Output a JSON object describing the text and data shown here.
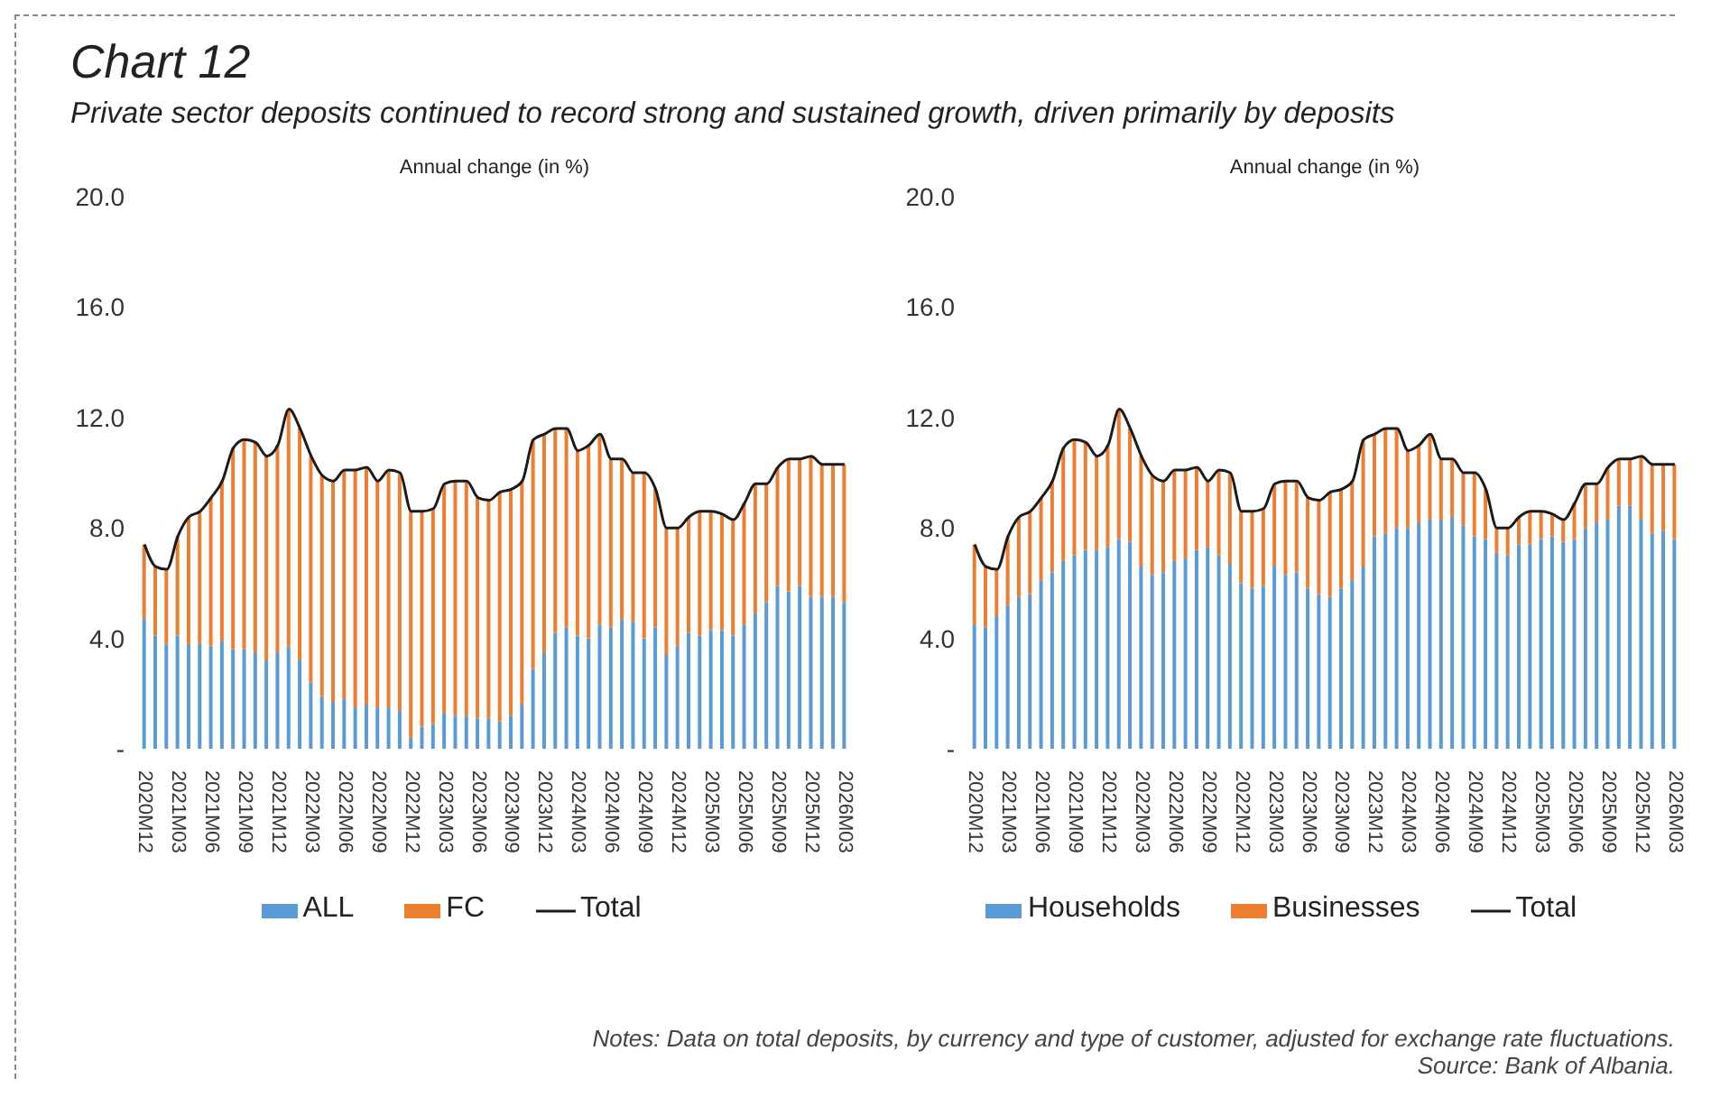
{
  "chart_data": [
    {
      "type": "bar",
      "title": "Chart 12",
      "subtitle": "Private sector deposits continued to record strong and sustained growth, driven primarily by deposits",
      "ylabel": "Annual change (in %)",
      "stacked": true,
      "legend": "bottom",
      "grid": false,
      "marker": "none",
      "categories": [
        "2020M12",
        null,
        null,
        "2021M03",
        null,
        null,
        "2021M06",
        null,
        null,
        "2021M09",
        null,
        null,
        "2021M12",
        null,
        null,
        "2022M03",
        null,
        null,
        "2022M06",
        null,
        null,
        "2022M09",
        null,
        null,
        "2022M12",
        null,
        null,
        "2023M03",
        null,
        null,
        "2023M06",
        null,
        null,
        "2023M09",
        null,
        null,
        "2023M12",
        null,
        null,
        "2024M03",
        null,
        null,
        "2024M06",
        null,
        null,
        "2024M09",
        null,
        null,
        "2024M12",
        null,
        null,
        "2025M03",
        null,
        null,
        "2025M06",
        null,
        null,
        "2025M09",
        null,
        null,
        "2025M12",
        null,
        null,
        "2026M03"
      ],
      "ylim": [
        0,
        20
      ],
      "yticks": [
        {
          "value": 0,
          "label": "-"
        },
        {
          "value": 4,
          "label": "4.0"
        },
        {
          "value": 8,
          "label": "8.0"
        },
        {
          "value": 12,
          "label": "12.0"
        },
        {
          "value": 16,
          "label": "16.0"
        },
        {
          "value": 20,
          "label": "20.0"
        }
      ],
      "series": [
        {
          "name": "ALL",
          "color": "#5b9bd5",
          "values": [
            4.7,
            4.1,
            3.8,
            4.1,
            3.8,
            3.8,
            3.7,
            3.9,
            3.6,
            3.6,
            3.5,
            3.2,
            3.5,
            3.7,
            3.2,
            2.4,
            1.9,
            1.7,
            1.8,
            1.5,
            1.6,
            1.5,
            1.5,
            1.4,
            0.4,
            0.8,
            0.9,
            1.3,
            1.2,
            1.2,
            1.1,
            1.1,
            1.0,
            1.2,
            1.6,
            2.9,
            3.5,
            4.2,
            4.4,
            4.1,
            4.0,
            4.5,
            4.4,
            4.7,
            4.6,
            4.0,
            4.4,
            3.4,
            3.7,
            4.2,
            4.1,
            4.3,
            4.3,
            4.1,
            4.5,
            4.9,
            5.3,
            5.9,
            5.7,
            5.9,
            5.5,
            5.5,
            5.5,
            5.3
          ]
        },
        {
          "name": "FC",
          "color": "#ed7d31",
          "values": [
            2.7,
            2.5,
            2.7,
            3.6,
            4.6,
            4.8,
            5.4,
            5.8,
            7.3,
            7.6,
            7.6,
            7.4,
            7.5,
            8.6,
            8.4,
            8.2,
            8.0,
            8.0,
            8.3,
            8.6,
            8.6,
            8.2,
            8.6,
            8.6,
            8.2,
            7.8,
            7.8,
            8.3,
            8.5,
            8.5,
            8.0,
            7.9,
            8.3,
            8.2,
            8.1,
            8.3,
            7.9,
            7.4,
            7.2,
            6.7,
            7.0,
            6.9,
            6.1,
            5.8,
            5.4,
            6.0,
            5.0,
            4.6,
            4.3,
            4.2,
            4.5,
            4.3,
            4.2,
            4.2,
            4.4,
            4.7,
            4.3,
            4.3,
            4.8,
            4.6,
            5.1,
            4.8,
            4.8,
            5.0
          ]
        },
        {
          "name": "Total",
          "type": "line",
          "color": "#1a1a1a",
          "values": [
            7.4,
            6.6,
            6.5,
            7.7,
            8.4,
            8.6,
            9.1,
            9.7,
            10.9,
            11.2,
            11.1,
            10.6,
            11.0,
            12.3,
            11.6,
            10.6,
            9.9,
            9.7,
            10.1,
            10.1,
            10.2,
            9.7,
            10.1,
            10.0,
            8.6,
            8.6,
            8.7,
            9.6,
            9.7,
            9.7,
            9.1,
            9.0,
            9.3,
            9.4,
            9.7,
            11.2,
            11.4,
            11.6,
            11.6,
            10.8,
            11.0,
            11.4,
            10.5,
            10.5,
            10.0,
            10.0,
            9.4,
            8.0,
            8.0,
            8.4,
            8.6,
            8.6,
            8.5,
            8.3,
            8.9,
            9.6,
            9.6,
            10.2,
            10.5,
            10.5,
            10.6,
            10.3,
            10.3,
            10.3
          ]
        }
      ]
    },
    {
      "type": "bar",
      "ylabel": "Annual change (in %)",
      "stacked": true,
      "legend": "bottom",
      "grid": false,
      "marker": "none",
      "categories": [
        "2020M12",
        null,
        null,
        "2021M03",
        null,
        null,
        "2021M06",
        null,
        null,
        "2021M09",
        null,
        null,
        "2021M12",
        null,
        null,
        "2022M03",
        null,
        null,
        "2022M06",
        null,
        null,
        "2022M09",
        null,
        null,
        "2022M12",
        null,
        null,
        "2023M03",
        null,
        null,
        "2023M06",
        null,
        null,
        "2023M09",
        null,
        null,
        "2023M12",
        null,
        null,
        "2024M03",
        null,
        null,
        "2024M06",
        null,
        null,
        "2024M09",
        null,
        null,
        "2024M12",
        null,
        null,
        "2025M03",
        null,
        null,
        "2025M06",
        null,
        null,
        "2025M09",
        null,
        null,
        "2025M12",
        null,
        null,
        "2026M03"
      ],
      "ylim": [
        0,
        20
      ],
      "yticks": [
        {
          "value": 0,
          "label": "-"
        },
        {
          "value": 4,
          "label": "4.0"
        },
        {
          "value": 8,
          "label": "8.0"
        },
        {
          "value": 12,
          "label": "12.0"
        },
        {
          "value": 16,
          "label": "16.0"
        },
        {
          "value": 20,
          "label": "20.0"
        }
      ],
      "annotations": [
        "Notes: Data on total deposits, by currency and type of customer, adjusted for exchange rate fluctuations.",
        "Source: Bank of Albania."
      ],
      "series": [
        {
          "name": "Households",
          "color": "#5b9bd5",
          "values": [
            4.5,
            4.4,
            4.8,
            5.2,
            5.5,
            5.6,
            6.1,
            6.4,
            6.8,
            7.0,
            7.2,
            7.2,
            7.3,
            7.6,
            7.5,
            6.6,
            6.3,
            6.4,
            6.8,
            6.9,
            7.2,
            7.3,
            7.0,
            6.7,
            6.0,
            5.8,
            5.9,
            6.6,
            6.3,
            6.4,
            5.8,
            5.6,
            5.5,
            5.8,
            6.1,
            6.6,
            7.7,
            7.8,
            8.0,
            8.0,
            8.2,
            8.3,
            8.3,
            8.4,
            8.1,
            7.7,
            7.6,
            7.1,
            7.0,
            7.4,
            7.4,
            7.6,
            7.7,
            7.5,
            7.6,
            8.0,
            8.2,
            8.3,
            8.8,
            8.8,
            8.3,
            7.8,
            7.9,
            7.6
          ]
        },
        {
          "name": "Businesses",
          "color": "#ed7d31",
          "values": [
            2.9,
            2.2,
            1.7,
            2.5,
            2.9,
            3.0,
            3.0,
            3.3,
            4.1,
            4.2,
            3.9,
            3.4,
            3.7,
            4.7,
            4.1,
            4.0,
            3.6,
            3.3,
            3.3,
            3.2,
            3.0,
            2.4,
            3.1,
            3.3,
            2.6,
            2.8,
            2.8,
            3.0,
            3.4,
            3.3,
            3.3,
            3.4,
            3.8,
            3.6,
            3.6,
            4.6,
            3.7,
            3.8,
            3.6,
            2.8,
            2.8,
            3.1,
            2.2,
            2.1,
            1.9,
            2.3,
            1.8,
            0.9,
            1.0,
            1.0,
            1.2,
            1.0,
            0.8,
            0.8,
            1.3,
            1.6,
            1.4,
            1.9,
            1.7,
            1.7,
            2.3,
            2.5,
            2.4,
            2.7
          ]
        },
        {
          "name": "Total",
          "type": "line",
          "color": "#1a1a1a",
          "values": [
            7.4,
            6.6,
            6.5,
            7.7,
            8.4,
            8.6,
            9.1,
            9.7,
            10.9,
            11.2,
            11.1,
            10.6,
            11.0,
            12.3,
            11.6,
            10.6,
            9.9,
            9.7,
            10.1,
            10.1,
            10.2,
            9.7,
            10.1,
            10.0,
            8.6,
            8.6,
            8.7,
            9.6,
            9.7,
            9.7,
            9.1,
            9.0,
            9.3,
            9.4,
            9.7,
            11.2,
            11.4,
            11.6,
            11.6,
            10.8,
            11.0,
            11.4,
            10.5,
            10.5,
            10.0,
            10.0,
            9.4,
            8.0,
            8.0,
            8.4,
            8.6,
            8.6,
            8.5,
            8.3,
            8.9,
            9.6,
            9.6,
            10.2,
            10.5,
            10.5,
            10.6,
            10.3,
            10.3,
            10.3
          ]
        }
      ]
    }
  ]
}
